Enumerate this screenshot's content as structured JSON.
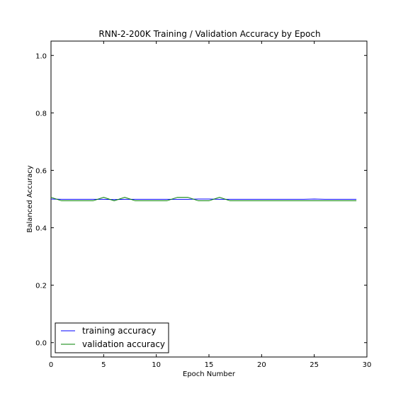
{
  "chart_data": {
    "type": "line",
    "title": "RNN-2-200K Training / Validation Accuracy by Epoch",
    "xlabel": "Epoch Number",
    "ylabel": "Balanced Accuracy",
    "xlim": [
      0,
      30
    ],
    "ylim": [
      -0.05,
      1.05
    ],
    "xticks": [
      0,
      5,
      10,
      15,
      20,
      25,
      30
    ],
    "yticks": [
      0.0,
      0.2,
      0.4,
      0.6,
      0.8,
      1.0
    ],
    "xtick_labels": [
      "0",
      "5",
      "10",
      "15",
      "20",
      "25",
      "30"
    ],
    "ytick_labels": [
      "0.0",
      "0.2",
      "0.4",
      "0.6",
      "0.8",
      "1.0"
    ],
    "grid": false,
    "legend_position": "lower-left",
    "x": [
      0,
      1,
      2,
      3,
      4,
      5,
      6,
      7,
      8,
      9,
      10,
      11,
      12,
      13,
      14,
      15,
      16,
      17,
      18,
      19,
      20,
      21,
      22,
      23,
      24,
      25,
      26,
      27,
      28,
      29
    ],
    "series": [
      {
        "name": "training accuracy",
        "color": "#0000ff",
        "values": [
          0.5,
          0.499,
          0.499,
          0.499,
          0.499,
          0.499,
          0.498,
          0.499,
          0.499,
          0.499,
          0.499,
          0.499,
          0.499,
          0.499,
          0.5,
          0.5,
          0.499,
          0.499,
          0.499,
          0.499,
          0.499,
          0.499,
          0.499,
          0.499,
          0.499,
          0.5,
          0.499,
          0.499,
          0.499,
          0.499
        ]
      },
      {
        "name": "validation accuracy",
        "color": "#008000",
        "values": [
          0.506,
          0.494,
          0.494,
          0.494,
          0.494,
          0.506,
          0.494,
          0.506,
          0.494,
          0.494,
          0.494,
          0.494,
          0.506,
          0.506,
          0.494,
          0.494,
          0.506,
          0.494,
          0.494,
          0.494,
          0.494,
          0.494,
          0.494,
          0.494,
          0.494,
          0.494,
          0.494,
          0.494,
          0.494,
          0.494
        ]
      }
    ]
  }
}
